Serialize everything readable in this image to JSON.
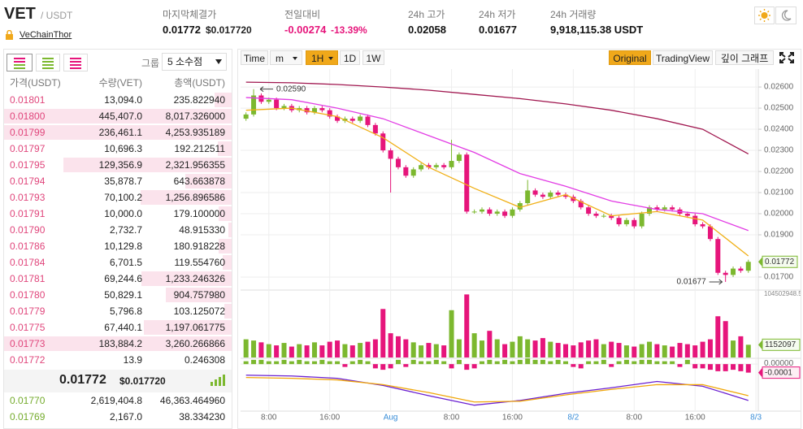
{
  "header": {
    "symbol": "VET",
    "quote": "/ USDT",
    "name": "VeChainThor",
    "stats": [
      {
        "label": "마지막체결가",
        "value": "0.01772",
        "sub": "$0.017720"
      },
      {
        "label": "전일대비",
        "value": "-0.00274",
        "sub": "-13.39%"
      },
      {
        "label": "24h 고가",
        "value": "0.02058"
      },
      {
        "label": "24h 저가",
        "value": "0.01677"
      },
      {
        "label": "24h 거래량",
        "value": "9,918,115.38 USDT"
      }
    ]
  },
  "orderbook": {
    "group_label": "그룹",
    "group_value": "5 소수점",
    "columns": [
      "가격(USDT)",
      "수량(VET)",
      "총액(USDT)"
    ],
    "asks": [
      [
        "0.01801",
        "13,094.0",
        "235.822940"
      ],
      [
        "0.01800",
        "445,407.0",
        "8,017.326000"
      ],
      [
        "0.01799",
        "236,461.1",
        "4,253.935189"
      ],
      [
        "0.01797",
        "10,696.3",
        "192.212511"
      ],
      [
        "0.01795",
        "129,356.9",
        "2,321.956355"
      ],
      [
        "0.01794",
        "35,878.7",
        "643.663878"
      ],
      [
        "0.01793",
        "70,100.2",
        "1,256.896586"
      ],
      [
        "0.01791",
        "10,000.0",
        "179.100000"
      ],
      [
        "0.01790",
        "2,732.7",
        "48.915330"
      ],
      [
        "0.01786",
        "10,129.8",
        "180.918228"
      ],
      [
        "0.01784",
        "6,701.5",
        "119.554760"
      ],
      [
        "0.01781",
        "69,244.6",
        "1,233.246326"
      ],
      [
        "0.01780",
        "50,829.1",
        "904.757980"
      ],
      [
        "0.01779",
        "5,796.8",
        "103.125072"
      ],
      [
        "0.01775",
        "67,440.1",
        "1,197.061775"
      ],
      [
        "0.01773",
        "183,884.2",
        "3,260.266866"
      ],
      [
        "0.01772",
        "13.9",
        "0.246308"
      ]
    ],
    "mid": {
      "price": "0.01772",
      "usd": "$0.017720"
    },
    "bids": [
      [
        "0.01770",
        "2,619,404.8",
        "46,363.464960"
      ],
      [
        "0.01769",
        "2,167.0",
        "38.334230"
      ]
    ]
  },
  "toolbar": {
    "buttons": [
      "Time",
      "m",
      "1H",
      "1D",
      "1W"
    ],
    "active": "1H",
    "views": [
      "Original",
      "TradingView",
      "깊이 그래프"
    ],
    "active_view": "Original"
  },
  "chart_data": {
    "type": "candlestick",
    "up_color": "#7cb82f",
    "down_color": "#e6157b",
    "open": [
      0.0245,
      0.0247,
      0.0256,
      0.0253,
      0.0254,
      0.025,
      0.0251,
      0.0249,
      0.025,
      0.0248,
      0.025,
      0.0249,
      0.0246,
      0.0244,
      0.0245,
      0.0244,
      0.0246,
      0.0242,
      0.0238,
      0.023,
      0.0226,
      0.0222,
      0.0218,
      0.0221,
      0.0223,
      0.0222,
      0.0223,
      0.0222,
      0.0225,
      0.0228,
      0.0201,
      0.0201,
      0.0202,
      0.02,
      0.0201,
      0.0199,
      0.0202,
      0.0205,
      0.0211,
      0.0209,
      0.0208,
      0.021,
      0.0209,
      0.0208,
      0.0206,
      0.0203,
      0.02,
      0.0199,
      0.0199,
      0.0198,
      0.0195,
      0.0197,
      0.0194,
      0.02,
      0.0203,
      0.0202,
      0.0203,
      0.0202,
      0.02,
      0.0199,
      0.0195,
      0.0194,
      0.0188,
      0.0172,
      0.0171,
      0.0174,
      0.0173
    ],
    "high": [
      0.0248,
      0.0259,
      0.0257,
      0.0255,
      0.0255,
      0.0252,
      0.0252,
      0.0251,
      0.0251,
      0.0251,
      0.0251,
      0.025,
      0.0247,
      0.0246,
      0.0246,
      0.0247,
      0.0247,
      0.0243,
      0.0239,
      0.0231,
      0.0227,
      0.0223,
      0.0222,
      0.0224,
      0.0224,
      0.0224,
      0.0224,
      0.0235,
      0.0229,
      0.0229,
      0.0202,
      0.0203,
      0.0203,
      0.0202,
      0.0202,
      0.0203,
      0.0206,
      0.0216,
      0.0212,
      0.021,
      0.0211,
      0.0211,
      0.021,
      0.0209,
      0.0207,
      0.0204,
      0.0201,
      0.02,
      0.02,
      0.0199,
      0.0198,
      0.0198,
      0.0201,
      0.0204,
      0.0204,
      0.0204,
      0.0204,
      0.0203,
      0.0201,
      0.02,
      0.0196,
      0.0195,
      0.0189,
      0.0173,
      0.0175,
      0.0175,
      0.01782
    ],
    "low": [
      0.0244,
      0.0246,
      0.0252,
      0.0252,
      0.0249,
      0.0249,
      0.0248,
      0.0248,
      0.0247,
      0.0247,
      0.0248,
      0.0245,
      0.0243,
      0.0243,
      0.0243,
      0.0243,
      0.0241,
      0.0237,
      0.0229,
      0.021,
      0.0221,
      0.0217,
      0.0217,
      0.022,
      0.0221,
      0.0221,
      0.0221,
      0.0221,
      0.0224,
      0.02,
      0.02,
      0.02,
      0.0199,
      0.0199,
      0.0198,
      0.0198,
      0.0201,
      0.0204,
      0.0208,
      0.0207,
      0.0207,
      0.0208,
      0.0207,
      0.0205,
      0.0202,
      0.0199,
      0.0198,
      0.0198,
      0.0197,
      0.0194,
      0.0194,
      0.0193,
      0.0193,
      0.0199,
      0.0201,
      0.0201,
      0.0201,
      0.0199,
      0.0198,
      0.0194,
      0.0193,
      0.0187,
      0.0171,
      0.01677,
      0.017,
      0.0172,
      0.0172
    ],
    "close": [
      0.0247,
      0.0256,
      0.0253,
      0.0254,
      0.025,
      0.0251,
      0.0249,
      0.025,
      0.0248,
      0.025,
      0.0249,
      0.0246,
      0.0244,
      0.0245,
      0.0244,
      0.0246,
      0.0242,
      0.0238,
      0.023,
      0.0226,
      0.0222,
      0.0218,
      0.0221,
      0.0223,
      0.0222,
      0.0223,
      0.0222,
      0.0225,
      0.0228,
      0.0201,
      0.0201,
      0.0202,
      0.02,
      0.0201,
      0.0199,
      0.0202,
      0.0205,
      0.0211,
      0.0209,
      0.0208,
      0.021,
      0.0209,
      0.0208,
      0.0206,
      0.0203,
      0.02,
      0.0199,
      0.0199,
      0.0198,
      0.0195,
      0.0197,
      0.0194,
      0.02,
      0.0203,
      0.0202,
      0.0203,
      0.0202,
      0.02,
      0.0199,
      0.0195,
      0.0194,
      0.0188,
      0.0172,
      0.0171,
      0.0174,
      0.0173,
      0.01772
    ],
    "xlim": [
      -0.5,
      67.2
    ],
    "xticks": [
      {
        "value": 3,
        "label": "8:00"
      },
      {
        "value": 11,
        "label": "16:00"
      },
      {
        "value": 19,
        "label": "Aug"
      },
      {
        "value": 27,
        "label": "8:00"
      },
      {
        "value": 35,
        "label": "16:00"
      },
      {
        "value": 43,
        "label": "8/2"
      },
      {
        "value": 51,
        "label": "8:00"
      },
      {
        "value": 59,
        "label": "16:00"
      },
      {
        "value": 67,
        "label": "8/3"
      }
    ],
    "ylim": [
      0.01646,
      0.02685
    ],
    "yticks": [
      {
        "value": 0.017,
        "label": "0.01700"
      },
      {
        "value": 0.019,
        "label": "0.01900"
      },
      {
        "value": 0.02,
        "label": "0.02000"
      },
      {
        "value": 0.021,
        "label": "0.02100"
      },
      {
        "value": 0.022,
        "label": "0.02200"
      },
      {
        "value": 0.023,
        "label": "0.02300"
      },
      {
        "value": 0.024,
        "label": "0.02400"
      },
      {
        "value": 0.025,
        "label": "0.02500"
      },
      {
        "value": 0.026,
        "label": "0.02600"
      }
    ],
    "grid": true,
    "high_label": "0.02590",
    "low_label": "0.01677",
    "current_label": "0.01772",
    "ma": [
      {
        "color": "#f0b018",
        "x": [
          0,
          6,
          12,
          18,
          24,
          30,
          36,
          42,
          48,
          54,
          60,
          66
        ],
        "values": [
          0.0249,
          0.025,
          0.0246,
          0.0236,
          0.0222,
          0.0212,
          0.0203,
          0.0209,
          0.0199,
          0.0201,
          0.0197,
          0.018
        ]
      },
      {
        "color": "#e23ce4",
        "x": [
          0,
          6,
          12,
          18,
          24,
          30,
          36,
          42,
          48,
          54,
          60,
          66
        ],
        "values": [
          0.0255,
          0.0254,
          0.025,
          0.0245,
          0.0237,
          0.0229,
          0.0219,
          0.0213,
          0.0206,
          0.0202,
          0.02,
          0.0192
        ]
      },
      {
        "color": "#a0174f",
        "x": [
          0,
          6,
          12,
          18,
          24,
          30,
          36,
          42,
          48,
          54,
          60,
          66
        ],
        "values": [
          0.02623,
          0.0262,
          0.02612,
          0.026,
          0.02585,
          0.02565,
          0.02545,
          0.0252,
          0.0249,
          0.0245,
          0.024,
          0.02283
        ]
      }
    ],
    "volume": {
      "ylim": [
        0,
        104502948.5
      ],
      "yticks": [
        104502948.5
      ],
      "last_label": "1152097",
      "values": [
        30000000,
        28000000,
        25000000,
        22000000,
        20000000,
        24000000,
        18000000,
        22000000,
        20000000,
        25000000,
        20000000,
        26000000,
        28000000,
        22000000,
        20000000,
        24000000,
        26000000,
        30000000,
        80000000,
        40000000,
        35000000,
        30000000,
        25000000,
        20000000,
        24000000,
        22000000,
        20000000,
        78000000,
        30000000,
        104000000,
        40000000,
        28000000,
        44000000,
        30000000,
        22000000,
        26000000,
        35000000,
        30000000,
        28000000,
        32000000,
        26000000,
        24000000,
        22000000,
        20000000,
        25000000,
        28000000,
        30000000,
        22000000,
        26000000,
        24000000,
        20000000,
        18000000,
        22000000,
        26000000,
        22000000,
        20000000,
        18000000,
        24000000,
        22000000,
        20000000,
        26000000,
        30000000,
        68000000,
        60000000,
        28000000,
        35000000,
        21000000
      ]
    },
    "macd": {
      "ylim": [
        -0.00065,
        7e-05
      ],
      "yticks": [
        {
          "value": 0,
          "label": "0.00000"
        }
      ],
      "last_label": "-0.0001",
      "histogram": [
        4e-05,
        6e-05,
        6e-05,
        4e-05,
        4e-05,
        6e-05,
        4e-05,
        6e-05,
        4e-05,
        4e-05,
        6e-05,
        4e-05,
        4e-05,
        -4e-05,
        4e-05,
        6e-05,
        4e-05,
        -6e-05,
        -8e-05,
        -6e-05,
        6e-05,
        -4e-05,
        6e-05,
        4e-05,
        4e-05,
        6e-05,
        4e-05,
        -6e-05,
        6e-05,
        -8e-05,
        -6e-05,
        4e-05,
        6e-05,
        4e-05,
        6e-05,
        4e-05,
        6e-05,
        8e-05,
        6e-05,
        6e-05,
        4e-05,
        6e-05,
        4e-05,
        -4e-05,
        -6e-05,
        4e-05,
        4e-05,
        6e-05,
        -4e-05,
        4e-05,
        6e-05,
        4e-05,
        6e-05,
        6e-05,
        4e-05,
        4e-05,
        4e-05,
        -4e-05,
        6e-05,
        -6e-05,
        -6e-05,
        -8e-05,
        -0.0001,
        -0.0001,
        -8e-05,
        -0.0001,
        -0.00012
      ],
      "lines": [
        {
          "color": "#6a1fd1",
          "x": [
            0,
            6,
            12,
            18,
            24,
            30,
            36,
            42,
            48,
            54,
            60,
            66
          ],
          "values": [
            -0.000156,
            -0.000167,
            -0.0002,
            -0.0003,
            -0.000444,
            -0.000578,
            -0.000511,
            -0.000411,
            -0.000333,
            -0.000244,
            -0.000311,
            -0.000511
          ]
        },
        {
          "color": "#f0a70a",
          "x": [
            0,
            6,
            12,
            18,
            24,
            30,
            36,
            42,
            48,
            54,
            60,
            66
          ],
          "values": [
            -0.000189,
            -0.0002,
            -0.000222,
            -0.000289,
            -0.0004,
            -0.000533,
            -0.000522,
            -0.000433,
            -0.000356,
            -0.000289,
            -0.000289,
            -0.000444
          ]
        }
      ]
    }
  }
}
